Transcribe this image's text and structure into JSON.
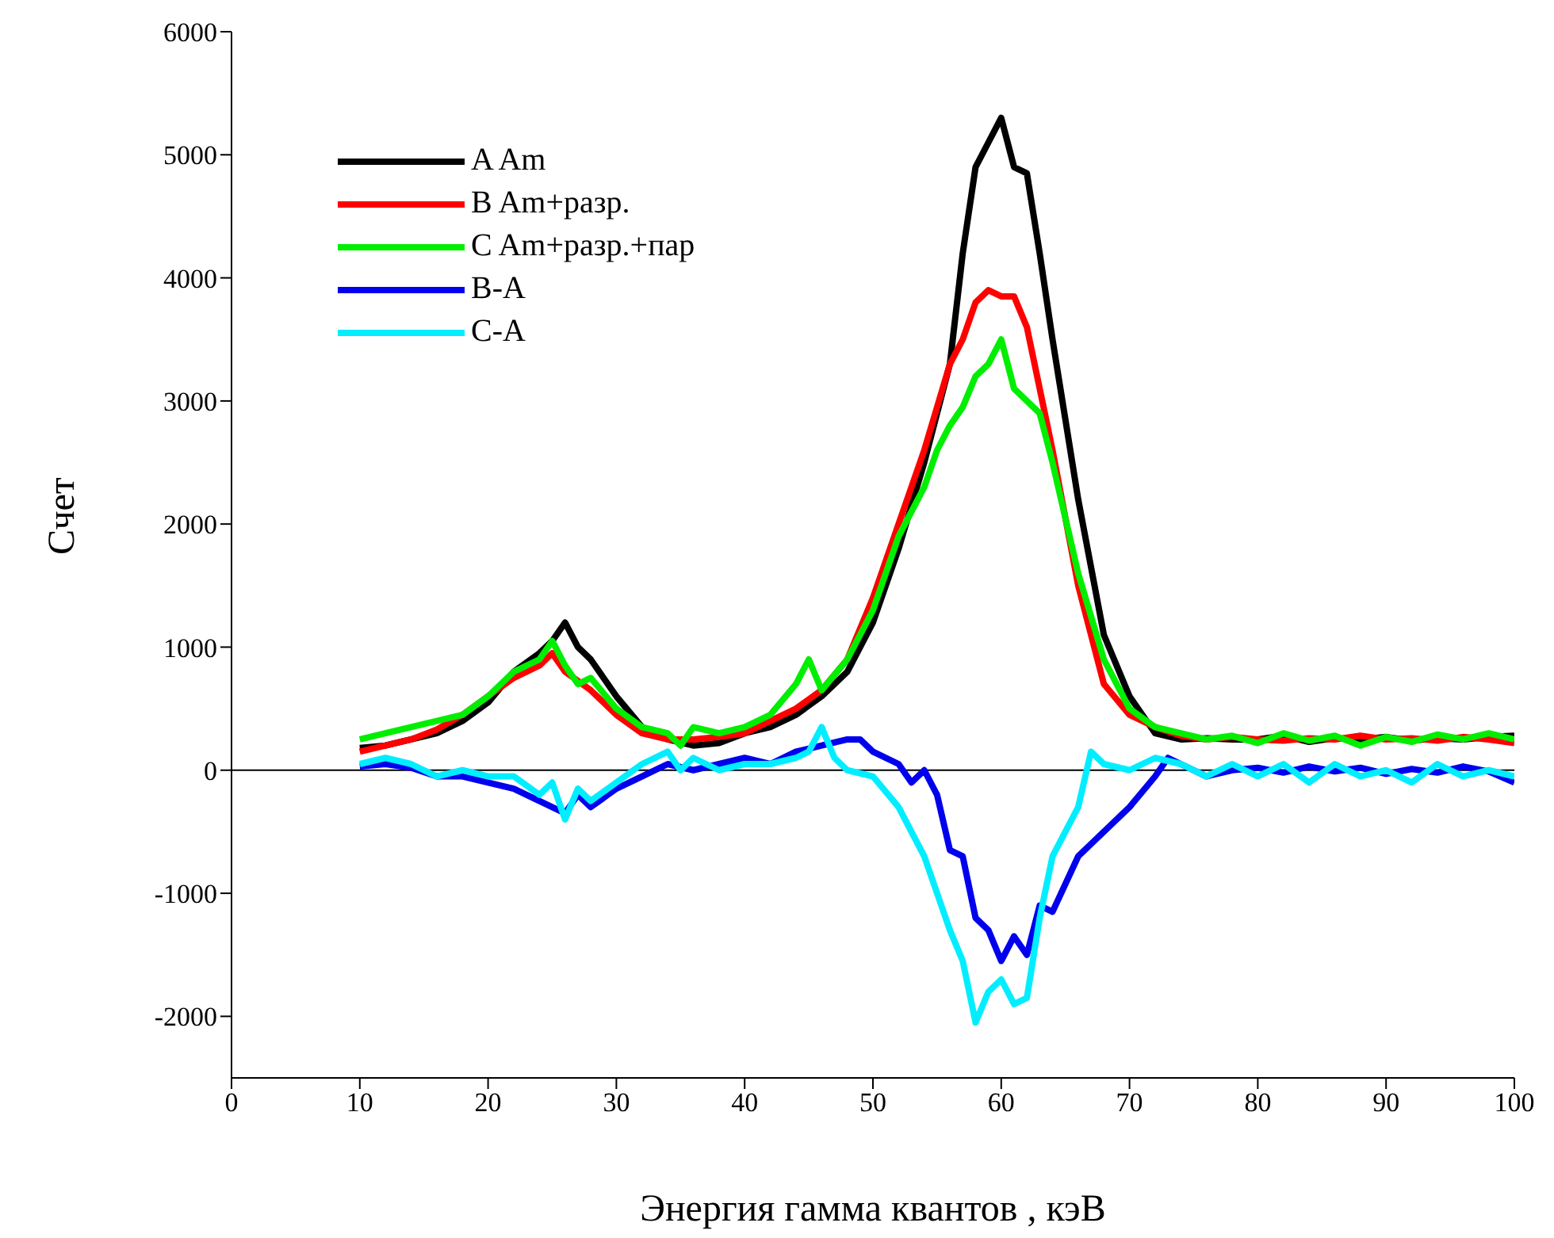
{
  "chart_data": {
    "type": "line",
    "xlabel": "Энергия гамма квантов  , кэВ",
    "ylabel": "Счет",
    "xlim": [
      0,
      100
    ],
    "xticks": [
      0,
      10,
      20,
      30,
      40,
      50,
      60,
      70,
      80,
      90,
      100
    ],
    "ylim": [
      -2500,
      6000
    ],
    "yticks": [
      -2000,
      -1000,
      0,
      1000,
      2000,
      3000,
      4000,
      5000,
      6000
    ],
    "grid": false,
    "legend": "top left",
    "marker": "none",
    "line_style": "solid",
    "ref_lines": [
      {
        "axis": "y",
        "value": 0,
        "color": "#000000"
      }
    ],
    "series": [
      {
        "name": "A Am",
        "color": "#000000",
        "x": [
          10,
          12,
          14,
          16,
          18,
          20,
          22,
          24,
          25,
          26,
          27,
          28,
          30,
          32,
          34,
          36,
          38,
          40,
          42,
          44,
          46,
          48,
          50,
          52,
          54,
          56,
          57,
          58,
          59,
          60,
          61,
          62,
          63,
          64,
          66,
          68,
          70,
          72,
          74,
          76,
          78,
          80,
          82,
          84,
          86,
          88,
          90,
          92,
          94,
          96,
          98,
          100
        ],
        "values": [
          180,
          200,
          250,
          300,
          400,
          550,
          800,
          950,
          1050,
          1200,
          1000,
          900,
          600,
          350,
          250,
          200,
          220,
          300,
          350,
          450,
          600,
          800,
          1200,
          1800,
          2500,
          3300,
          4200,
          4900,
          5100,
          5300,
          4900,
          4850,
          4200,
          3500,
          2200,
          1100,
          600,
          300,
          250,
          260,
          250,
          250,
          280,
          230,
          260,
          250,
          270,
          240,
          260,
          250,
          270,
          280
        ]
      },
      {
        "name": "B Am+разр.",
        "color": "#ff0000",
        "x": [
          10,
          12,
          14,
          16,
          18,
          20,
          22,
          24,
          25,
          26,
          28,
          30,
          32,
          34,
          36,
          38,
          40,
          42,
          44,
          46,
          48,
          50,
          52,
          54,
          56,
          57,
          58,
          59,
          60,
          61,
          62,
          64,
          66,
          68,
          70,
          72,
          74,
          76,
          78,
          80,
          82,
          84,
          86,
          88,
          90,
          92,
          94,
          96,
          98,
          100
        ],
        "values": [
          150,
          200,
          250,
          330,
          450,
          600,
          750,
          850,
          950,
          800,
          650,
          450,
          300,
          250,
          250,
          270,
          300,
          400,
          500,
          650,
          900,
          1400,
          2000,
          2600,
          3300,
          3500,
          3800,
          3900,
          3850,
          3850,
          3600,
          2600,
          1500,
          700,
          450,
          350,
          280,
          250,
          270,
          250,
          240,
          260,
          250,
          280,
          250,
          260,
          240,
          270,
          250,
          220
        ]
      },
      {
        "name": "C Am+разр.+пар",
        "color": "#00ee00",
        "x": [
          10,
          12,
          14,
          16,
          18,
          20,
          22,
          24,
          25,
          26,
          27,
          28,
          30,
          32,
          34,
          35,
          36,
          38,
          40,
          42,
          44,
          45,
          46,
          48,
          50,
          52,
          54,
          55,
          56,
          57,
          58,
          59,
          60,
          61,
          62,
          63,
          64,
          66,
          68,
          70,
          72,
          74,
          76,
          78,
          80,
          82,
          84,
          86,
          88,
          90,
          92,
          94,
          96,
          98,
          100
        ],
        "values": [
          250,
          300,
          350,
          400,
          450,
          600,
          800,
          900,
          1050,
          850,
          700,
          750,
          500,
          350,
          300,
          200,
          350,
          300,
          350,
          450,
          700,
          900,
          650,
          900,
          1300,
          1900,
          2300,
          2600,
          2800,
          2950,
          3200,
          3300,
          3500,
          3100,
          3000,
          2900,
          2500,
          1600,
          900,
          500,
          350,
          300,
          250,
          280,
          220,
          300,
          240,
          280,
          200,
          270,
          230,
          290,
          250,
          300,
          250
        ]
      },
      {
        "name": "B-A",
        "color": "#0000ee",
        "x": [
          10,
          12,
          14,
          16,
          18,
          20,
          22,
          24,
          26,
          27,
          28,
          30,
          32,
          34,
          36,
          38,
          40,
          42,
          44,
          46,
          48,
          49,
          50,
          52,
          53,
          54,
          55,
          56,
          57,
          58,
          59,
          60,
          61,
          62,
          63,
          64,
          66,
          68,
          70,
          72,
          73,
          74,
          76,
          78,
          80,
          82,
          84,
          86,
          88,
          90,
          92,
          94,
          96,
          98,
          100
        ],
        "values": [
          30,
          50,
          20,
          -50,
          -50,
          -100,
          -150,
          -250,
          -350,
          -200,
          -300,
          -150,
          -50,
          50,
          0,
          50,
          100,
          50,
          150,
          200,
          250,
          250,
          150,
          50,
          -100,
          0,
          -200,
          -650,
          -700,
          -1200,
          -1300,
          -1550,
          -1350,
          -1500,
          -1100,
          -1150,
          -700,
          -500,
          -300,
          -50,
          100,
          50,
          -50,
          0,
          20,
          -20,
          30,
          -10,
          20,
          -30,
          10,
          -20,
          30,
          -10,
          -100
        ]
      },
      {
        "name": "C-A",
        "color": "#00eeff",
        "x": [
          10,
          12,
          14,
          16,
          18,
          20,
          22,
          24,
          25,
          26,
          27,
          28,
          30,
          32,
          34,
          35,
          36,
          38,
          40,
          42,
          44,
          45,
          46,
          47,
          48,
          50,
          52,
          53,
          54,
          55,
          56,
          57,
          58,
          59,
          60,
          61,
          62,
          63,
          64,
          66,
          67,
          68,
          70,
          72,
          74,
          76,
          78,
          80,
          82,
          84,
          86,
          88,
          90,
          92,
          94,
          96,
          98,
          100
        ],
        "values": [
          50,
          100,
          50,
          -50,
          0,
          -50,
          -50,
          -200,
          -100,
          -400,
          -150,
          -250,
          -100,
          50,
          150,
          0,
          100,
          0,
          50,
          50,
          100,
          150,
          350,
          100,
          0,
          -50,
          -300,
          -500,
          -700,
          -1000,
          -1300,
          -1550,
          -2050,
          -1800,
          -1700,
          -1900,
          -1850,
          -1200,
          -700,
          -300,
          150,
          50,
          0,
          100,
          50,
          -50,
          50,
          -50,
          50,
          -100,
          50,
          -50,
          0,
          -100,
          50,
          -50,
          0,
          -50
        ]
      }
    ]
  }
}
